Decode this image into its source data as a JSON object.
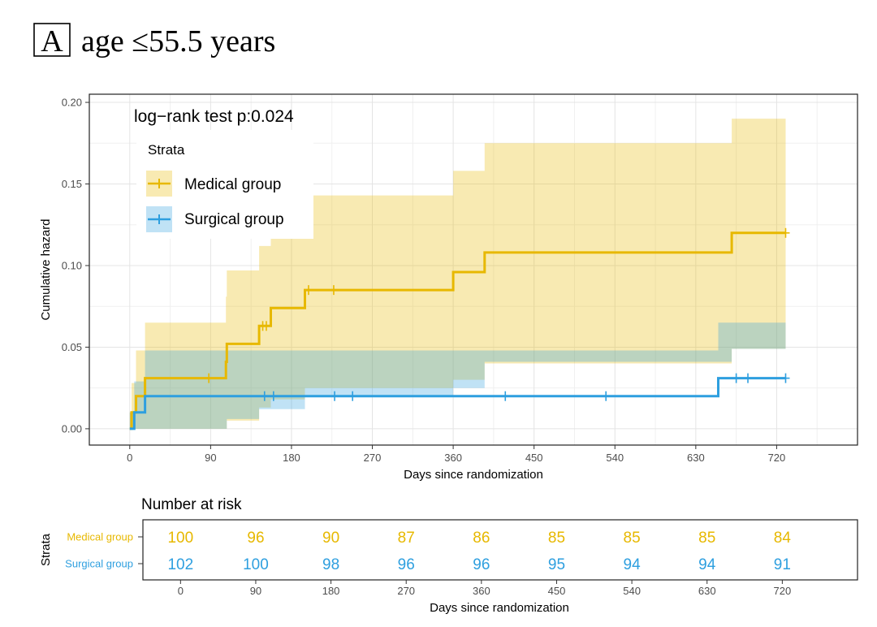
{
  "panel": {
    "letter": "A",
    "title": "age ≤55.5 years"
  },
  "chart_data": {
    "type": "line",
    "step": true,
    "annotation": "log−rank test p:0.024",
    "xlabel": "Days since randomization",
    "ylabel": "Cumulative hazard",
    "xlim": [
      -45,
      810
    ],
    "ylim": [
      -0.01,
      0.205
    ],
    "xticks": [
      0,
      90,
      180,
      270,
      360,
      450,
      540,
      630,
      720
    ],
    "xtick_labels": [
      "0",
      "90",
      "180",
      "270",
      "360",
      "450",
      "540",
      "630",
      "720"
    ],
    "yticks": [
      0,
      0.05,
      0.1,
      0.15,
      0.2
    ],
    "ytick_labels": [
      "0.00",
      "0.05",
      "0.10",
      "0.15",
      "0.20"
    ],
    "grid": true,
    "legend": {
      "title": "Strata",
      "placement": "top-left",
      "entries": [
        "Medical group",
        "Surgical group"
      ]
    },
    "series": [
      {
        "name": "Medical group",
        "color": "#E7B800",
        "steps": [
          [
            0,
            0
          ],
          [
            2,
            0.01
          ],
          [
            7,
            0.02
          ],
          [
            17,
            0.031
          ],
          [
            107,
            0.041
          ],
          [
            108,
            0.052
          ],
          [
            144,
            0.063
          ],
          [
            157,
            0.074
          ],
          [
            195,
            0.085
          ],
          [
            360,
            0.096
          ],
          [
            395,
            0.108
          ],
          [
            670,
            0.12
          ],
          [
            730,
            0.12
          ]
        ],
        "censored": [
          [
            88,
            0.031
          ],
          [
            148,
            0.063
          ],
          [
            152,
            0.063
          ],
          [
            199,
            0.085
          ],
          [
            227,
            0.085
          ],
          [
            730,
            0.12
          ]
        ],
        "ci_upper": [
          [
            0,
            0.01
          ],
          [
            2,
            0.028
          ],
          [
            7,
            0.048
          ],
          [
            17,
            0.065
          ],
          [
            107,
            0.081
          ],
          [
            108,
            0.097
          ],
          [
            144,
            0.112
          ],
          [
            157,
            0.127
          ],
          [
            195,
            0.143
          ],
          [
            360,
            0.158
          ],
          [
            395,
            0.175
          ],
          [
            670,
            0.19
          ],
          [
            730,
            0.19
          ]
        ],
        "ci_lower": [
          [
            0,
            0
          ],
          [
            2,
            0
          ],
          [
            7,
            0
          ],
          [
            17,
            0
          ],
          [
            107,
            0
          ],
          [
            108,
            0.005
          ],
          [
            144,
            0.013
          ],
          [
            157,
            0.018
          ],
          [
            195,
            0.025
          ],
          [
            360,
            0.03
          ],
          [
            395,
            0.04
          ],
          [
            670,
            0.049
          ],
          [
            730,
            0.049
          ]
        ]
      },
      {
        "name": "Surgical group",
        "color": "#2E9FDF",
        "steps": [
          [
            0,
            0
          ],
          [
            5,
            0.01
          ],
          [
            17,
            0.02
          ],
          [
            655,
            0.031
          ],
          [
            730,
            0.031
          ]
        ],
        "censored": [
          [
            150,
            0.02
          ],
          [
            160,
            0.02
          ],
          [
            228,
            0.02
          ],
          [
            248,
            0.02
          ],
          [
            418,
            0.02
          ],
          [
            530,
            0.02
          ],
          [
            675,
            0.031
          ],
          [
            688,
            0.031
          ],
          [
            730,
            0.031
          ]
        ],
        "ci_upper": [
          [
            0,
            0.01
          ],
          [
            5,
            0.029
          ],
          [
            17,
            0.048
          ],
          [
            655,
            0.065
          ],
          [
            730,
            0.065
          ]
        ],
        "ci_lower": [
          [
            0,
            0
          ],
          [
            5,
            0
          ],
          [
            17,
            0
          ],
          [
            108,
            0.006
          ],
          [
            144,
            0.012
          ],
          [
            195,
            0.02
          ],
          [
            360,
            0.025
          ],
          [
            395,
            0.041
          ],
          [
            670,
            0.049
          ],
          [
            730,
            0.049
          ]
        ]
      }
    ],
    "risk_table": {
      "title": "Number at risk",
      "ylabel": "Strata",
      "xlabel": "Days since randomization",
      "times": [
        0,
        90,
        180,
        270,
        360,
        450,
        540,
        630,
        720
      ],
      "time_labels": [
        "0",
        "90",
        "180",
        "270",
        "360",
        "450",
        "540",
        "630",
        "720"
      ],
      "rows": [
        {
          "name": "Medical group",
          "color": "#E7B800",
          "values": [
            "100",
            "96",
            "90",
            "87",
            "86",
            "85",
            "85",
            "85",
            "84"
          ]
        },
        {
          "name": "Surgical group",
          "color": "#2E9FDF",
          "values": [
            "102",
            "100",
            "98",
            "96",
            "96",
            "95",
            "94",
            "94",
            "91"
          ]
        }
      ]
    }
  }
}
